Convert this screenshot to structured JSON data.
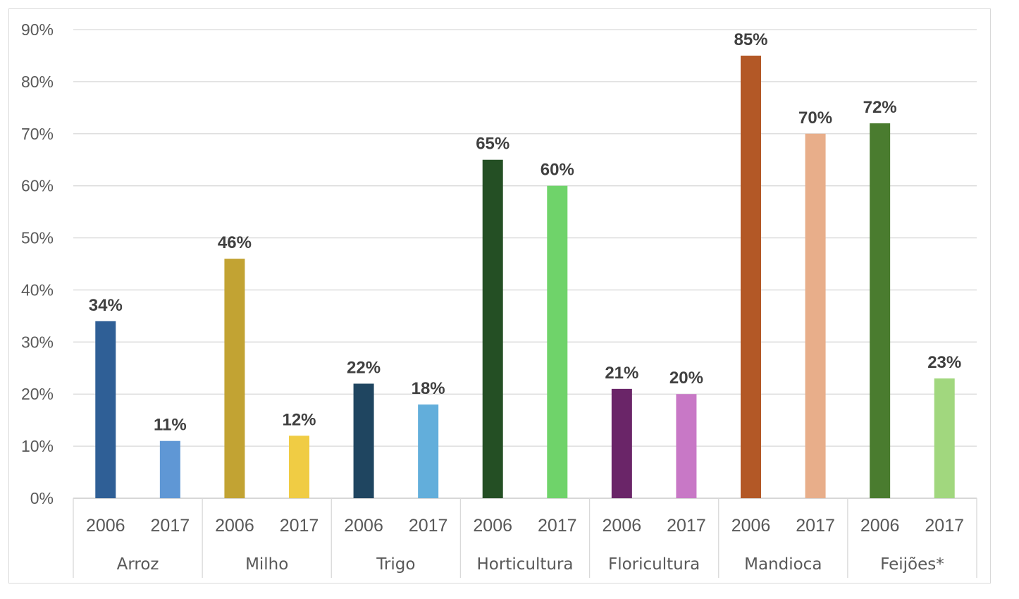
{
  "chart_data": {
    "type": "bar",
    "title": "",
    "xlabel": "",
    "ylabel": "",
    "ylim": [
      0,
      90
    ],
    "ytick_step": 10,
    "ytick_labels": [
      "0%",
      "10%",
      "20%",
      "30%",
      "40%",
      "50%",
      "60%",
      "70%",
      "80%",
      "90%"
    ],
    "grid": true,
    "groups": [
      {
        "name": "Arroz",
        "years": [
          "2006",
          "2017"
        ],
        "values": [
          34,
          11
        ],
        "labels": [
          "34%",
          "11%"
        ],
        "colors": [
          "#2f5f96",
          "#5f97d5"
        ]
      },
      {
        "name": "Milho",
        "years": [
          "2006",
          "2017"
        ],
        "values": [
          46,
          12
        ],
        "labels": [
          "46%",
          "12%"
        ],
        "colors": [
          "#c2a333",
          "#f0cc44"
        ]
      },
      {
        "name": "Trigo",
        "years": [
          "2006",
          "2017"
        ],
        "values": [
          22,
          18
        ],
        "labels": [
          "22%",
          "18%"
        ],
        "colors": [
          "#1f4560",
          "#62aedb"
        ]
      },
      {
        "name": "Horticultura",
        "years": [
          "2006",
          "2017"
        ],
        "values": [
          65,
          60
        ],
        "labels": [
          "65%",
          "60%"
        ],
        "colors": [
          "#244f24",
          "#6fd36a"
        ]
      },
      {
        "name": "Floricultura",
        "years": [
          "2006",
          "2017"
        ],
        "values": [
          21,
          20
        ],
        "labels": [
          "21%",
          "20%"
        ],
        "colors": [
          "#6a2568",
          "#c878c6"
        ]
      },
      {
        "name": "Mandioca",
        "years": [
          "2006",
          "2017"
        ],
        "values": [
          85,
          70
        ],
        "labels": [
          "85%",
          "70%"
        ],
        "colors": [
          "#b35826",
          "#e8ae8a"
        ]
      },
      {
        "name": "Feijões*",
        "years": [
          "2006",
          "2017"
        ],
        "values": [
          72,
          23
        ],
        "labels": [
          "72%",
          "23%"
        ],
        "colors": [
          "#4a7c2f",
          "#a1d77e"
        ]
      }
    ]
  }
}
